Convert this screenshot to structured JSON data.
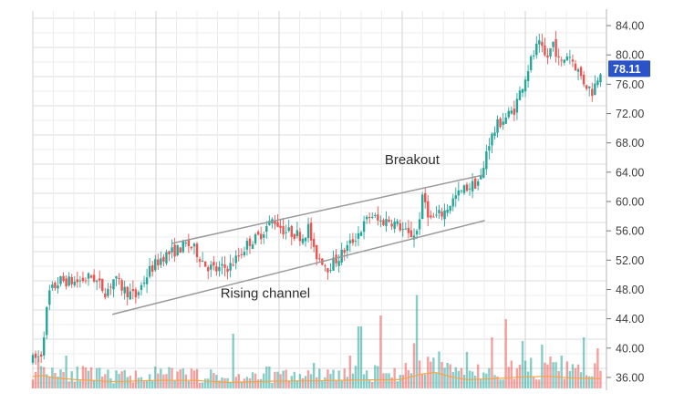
{
  "chart_data": {
    "type": "candlestick",
    "title": "",
    "xlabel": "",
    "ylabel": "",
    "ylim": [
      34.5,
      86
    ],
    "y_ticks": [
      "84.00",
      "80.00",
      "76.00",
      "72.00",
      "68.00",
      "64.00",
      "60.00",
      "56.00",
      "52.00",
      "48.00",
      "44.00",
      "40.00",
      "36.00"
    ],
    "grid": true,
    "last_price": "78.11",
    "colors": {
      "up": "#26a69a",
      "down": "#ef5350",
      "price_tag": "#2a52c9",
      "channel": "#9a9a9a",
      "volume_ma": "#f3a64a"
    },
    "channel_lines": [
      {
        "name": "upper",
        "points": [
          [
            0.258,
            54.3
          ],
          [
            0.832,
            63.6
          ]
        ]
      },
      {
        "name": "lower",
        "points": [
          [
            0.147,
            44.6
          ],
          [
            0.836,
            57.4
          ]
        ]
      }
    ],
    "annotations": [
      {
        "text": "Breakout",
        "x": 0.715,
        "y": 65.7
      },
      {
        "text": "Rising channel",
        "x": 0.43,
        "y": 47.5
      }
    ],
    "price_path": [
      [
        0.0,
        38.4
      ],
      [
        0.015,
        39.0
      ],
      [
        0.03,
        47.5
      ],
      [
        0.05,
        49.2
      ],
      [
        0.08,
        49.0
      ],
      [
        0.11,
        49.8
      ],
      [
        0.135,
        47.6
      ],
      [
        0.15,
        49.5
      ],
      [
        0.168,
        48.0
      ],
      [
        0.19,
        47.0
      ],
      [
        0.215,
        50.5
      ],
      [
        0.24,
        52.5
      ],
      [
        0.27,
        53.5
      ],
      [
        0.285,
        54.2
      ],
      [
        0.3,
        53.4
      ],
      [
        0.32,
        51.3
      ],
      [
        0.34,
        50.6
      ],
      [
        0.365,
        51.2
      ],
      [
        0.38,
        52.5
      ],
      [
        0.4,
        54.5
      ],
      [
        0.415,
        55.0
      ],
      [
        0.435,
        56.8
      ],
      [
        0.445,
        57.6
      ],
      [
        0.465,
        56.0
      ],
      [
        0.485,
        55.6
      ],
      [
        0.5,
        55.2
      ],
      [
        0.51,
        56.5
      ],
      [
        0.52,
        53.0
      ],
      [
        0.535,
        52.0
      ],
      [
        0.545,
        51.0
      ],
      [
        0.565,
        52.3
      ],
      [
        0.59,
        54.5
      ],
      [
        0.61,
        56.5
      ],
      [
        0.625,
        58.3
      ],
      [
        0.64,
        57.2
      ],
      [
        0.66,
        57.5
      ],
      [
        0.68,
        56.5
      ],
      [
        0.695,
        55.3
      ],
      [
        0.71,
        55.8
      ],
      [
        0.722,
        60.8
      ],
      [
        0.735,
        57.5
      ],
      [
        0.76,
        58.5
      ],
      [
        0.78,
        60.5
      ],
      [
        0.8,
        61.8
      ],
      [
        0.82,
        62.5
      ],
      [
        0.832,
        63.5
      ],
      [
        0.84,
        67.5
      ],
      [
        0.86,
        70.5
      ],
      [
        0.89,
        72.5
      ],
      [
        0.905,
        75.8
      ],
      [
        0.92,
        79.0
      ],
      [
        0.935,
        81.5
      ],
      [
        0.95,
        79.3
      ],
      [
        0.963,
        81.8
      ],
      [
        0.975,
        78.5
      ],
      [
        0.99,
        80.3
      ],
      [
        1.0,
        79.0
      ],
      [
        1.02,
        76.2
      ],
      [
        1.035,
        75.0
      ],
      [
        1.05,
        78.1
      ]
    ],
    "volume_path": [
      [
        0.0,
        0.3
      ],
      [
        0.02,
        0.32
      ],
      [
        0.04,
        0.26
      ],
      [
        0.08,
        0.22
      ],
      [
        0.15,
        0.17
      ],
      [
        0.23,
        0.2
      ],
      [
        0.3,
        0.2
      ],
      [
        0.36,
        0.15
      ],
      [
        0.44,
        0.18
      ],
      [
        0.52,
        0.19
      ],
      [
        0.6,
        0.21
      ],
      [
        0.68,
        0.22
      ],
      [
        0.72,
        0.36
      ],
      [
        0.745,
        0.4
      ],
      [
        0.77,
        0.3
      ],
      [
        0.8,
        0.22
      ],
      [
        0.85,
        0.24
      ],
      [
        0.9,
        0.28
      ],
      [
        0.95,
        0.3
      ],
      [
        1.0,
        0.26
      ],
      [
        1.05,
        0.24
      ]
    ],
    "volume_spikes": [
      [
        0.06,
        0.45
      ],
      [
        0.225,
        0.3
      ],
      [
        0.37,
        0.75
      ],
      [
        0.435,
        0.3
      ],
      [
        0.52,
        0.35
      ],
      [
        0.585,
        0.45
      ],
      [
        0.605,
        0.85
      ],
      [
        0.645,
        1.0
      ],
      [
        0.705,
        0.62
      ],
      [
        0.71,
        1.28
      ],
      [
        0.805,
        0.5
      ],
      [
        0.85,
        0.7
      ],
      [
        0.875,
        0.95
      ],
      [
        0.905,
        0.65
      ],
      [
        0.94,
        0.6
      ],
      [
        0.98,
        0.45
      ],
      [
        1.02,
        0.7
      ],
      [
        1.045,
        0.55
      ]
    ]
  }
}
